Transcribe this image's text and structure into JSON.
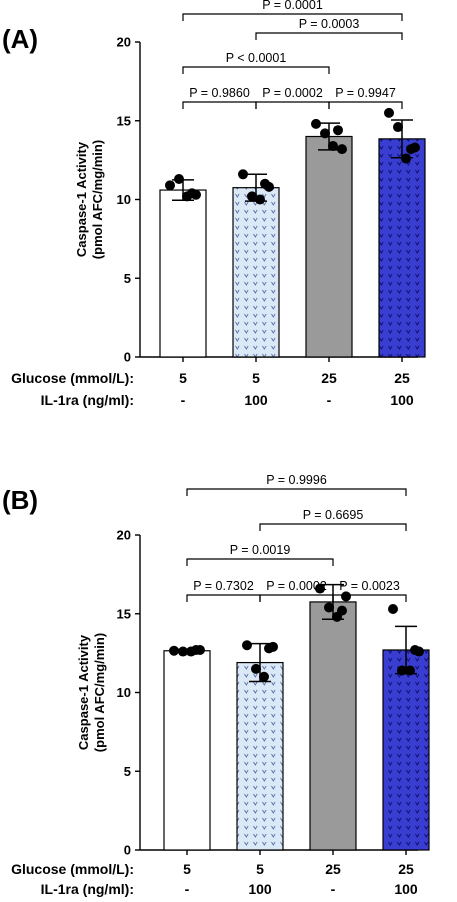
{
  "chart_data": [
    {
      "type": "bar",
      "panel_label": "(A)",
      "ylabel": [
        "Caspase-1 Activity",
        "(pmol AFC/mg/min)"
      ],
      "ylim": [
        0,
        20
      ],
      "yticks": [
        "0",
        "5",
        "10",
        "15",
        "20"
      ],
      "row_labels": [
        "Glucose (mmol/L):",
        "IL-1ra (ng/ml):"
      ],
      "glucose": [
        "5",
        "5",
        "25",
        "25"
      ],
      "il1ra": [
        "-",
        "100",
        "-",
        "100"
      ],
      "fills": [
        "#ffffff",
        "#dbe9f7",
        "#9a9a9a",
        "#3a3ed0"
      ],
      "patterned": [
        false,
        true,
        false,
        true
      ],
      "values": [
        10.6,
        10.75,
        14.0,
        13.85
      ],
      "sd": [
        0.65,
        0.85,
        0.85,
        1.2
      ],
      "points": [
        [
          10.9,
          10.3,
          11.3,
          10.2,
          10.4
        ],
        [
          11.6,
          10.8,
          10.2,
          10.0,
          11.0
        ],
        [
          14.8,
          13.2,
          14.2,
          13.4,
          14.4
        ],
        [
          15.5,
          13.3,
          14.6,
          12.6,
          13.2
        ]
      ],
      "comparisons": [
        {
          "a": 1,
          "b": 2,
          "label": "P = 0.9860",
          "level": 19.05,
          "hop": true
        },
        {
          "a": 2,
          "b": 3,
          "label": "P = 0.0002",
          "level": 19.05,
          "hop": true
        },
        {
          "a": 3,
          "b": 4,
          "label": "P = 0.9947",
          "level": 19.05,
          "hop": false
        },
        {
          "a": 1,
          "b": 3,
          "label": "P < 0.0001",
          "level": 20.4,
          "hop": false
        },
        {
          "a": 2,
          "b": 4,
          "label": "P = 0.0003",
          "level": 21.8,
          "hop": false
        },
        {
          "a": 1,
          "b": 4,
          "label": "P = 0.0001",
          "level": 23.2,
          "hop": false
        }
      ]
    },
    {
      "type": "bar",
      "panel_label": "(B)",
      "ylabel": [
        "Caspase-1 Activity",
        "(pmol AFC/mg/min)"
      ],
      "ylim": [
        0,
        20
      ],
      "yticks": [
        "0",
        "5",
        "10",
        "15",
        "20"
      ],
      "row_labels": [
        "Glucose (mmol/L):",
        "IL-1ra (ng/ml):"
      ],
      "glucose": [
        "5",
        "5",
        "25",
        "25"
      ],
      "il1ra": [
        "-",
        "100",
        "-",
        "100"
      ],
      "fills": [
        "#ffffff",
        "#dbe9f7",
        "#9a9a9a",
        "#3a3ed0"
      ],
      "patterned": [
        false,
        true,
        false,
        true
      ],
      "values": [
        12.65,
        11.9,
        15.75,
        12.7
      ],
      "sd": [
        0.1,
        1.2,
        1.1,
        1.5
      ],
      "points": [
        [
          12.65,
          12.7,
          12.6,
          12.6,
          12.7
        ],
        [
          13.0,
          12.9,
          11.5,
          11.0,
          12.8
        ],
        [
          16.6,
          16.1,
          15.4,
          14.8,
          15.2
        ],
        [
          15.3,
          12.6,
          11.4,
          11.4,
          12.7
        ]
      ],
      "comparisons": [
        {
          "a": 1,
          "b": 2,
          "label": "P = 0.7302",
          "level": 19.05,
          "hop": true
        },
        {
          "a": 2,
          "b": 3,
          "label": "P = 0.0002",
          "level": 19.05,
          "hop": true
        },
        {
          "a": 3,
          "b": 4,
          "label": "P = 0.0023",
          "level": 19.05,
          "hop": false
        },
        {
          "a": 1,
          "b": 3,
          "label": "P = 0.0019",
          "level": 20.4,
          "hop": false
        },
        {
          "a": 2,
          "b": 4,
          "label": "P = 0.6695",
          "level": 21.8,
          "hop": false
        },
        {
          "a": 1,
          "b": 4,
          "label": "P = 0.9996",
          "level": 23.2,
          "hop": false
        }
      ]
    }
  ]
}
